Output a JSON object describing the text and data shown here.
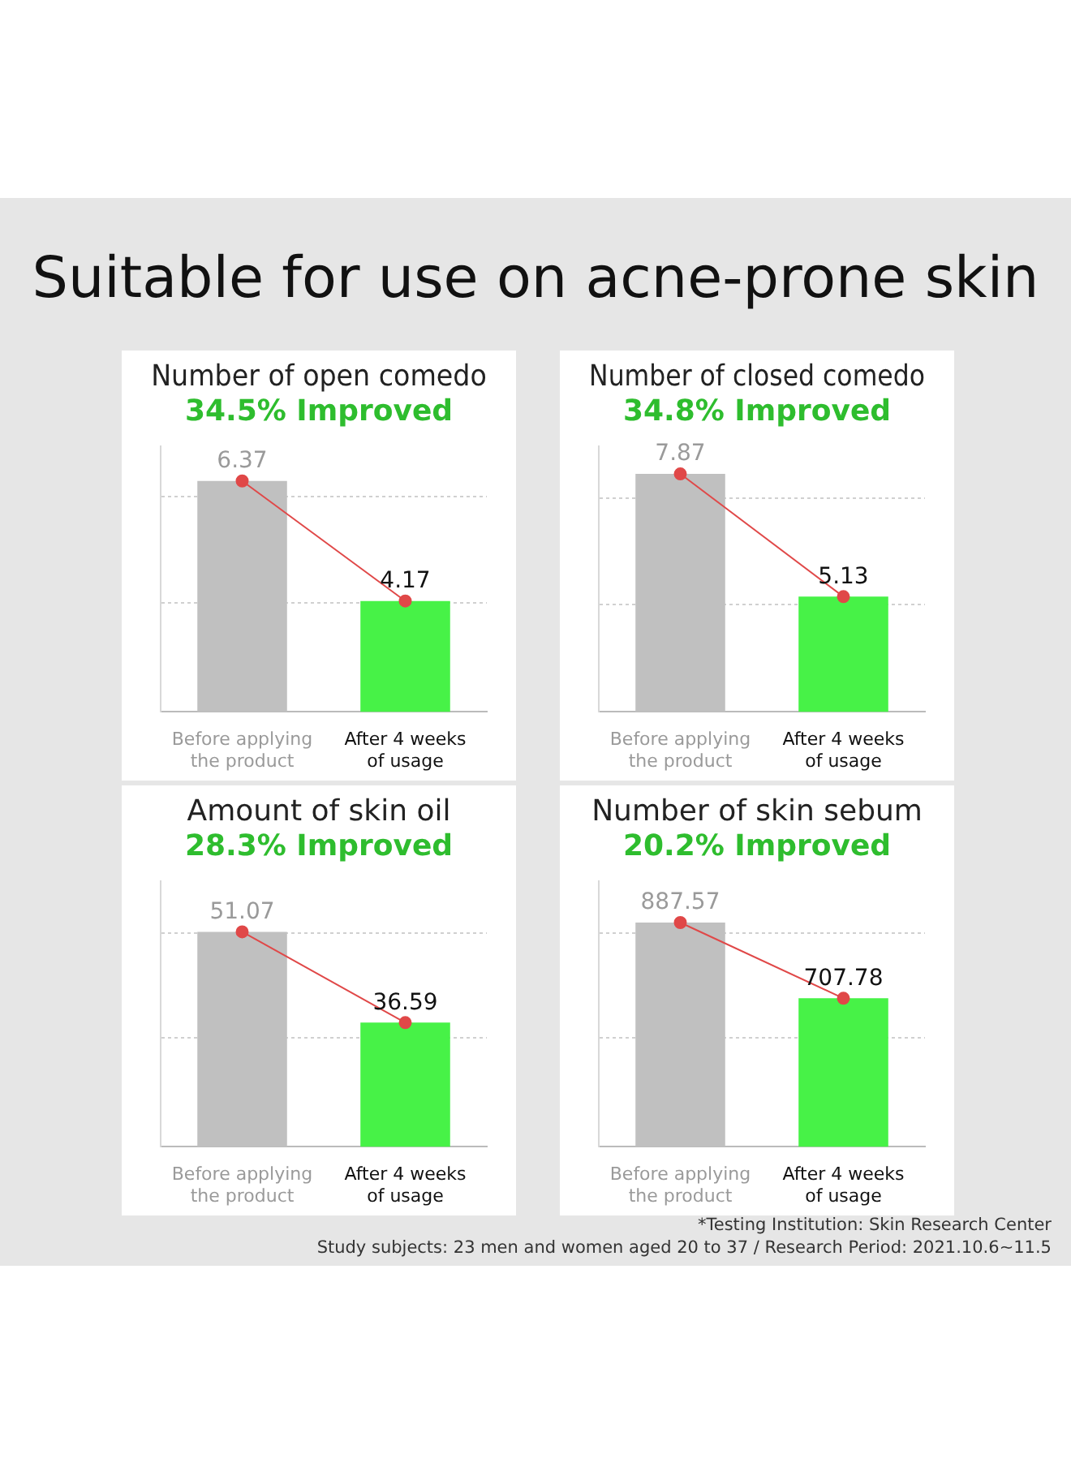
{
  "chart_data": [
    {
      "type": "bar",
      "title": "Number of open comedo",
      "subtitle": "34.5% Improved",
      "categories": [
        "Before applying the product",
        "After 4 weeks of usage"
      ],
      "series": [
        {
          "colors": [
            "#c0c0c0",
            "#47f247"
          ],
          "values": [
            6.37,
            4.17
          ],
          "value_labels": [
            "6.37",
            "4.17"
          ]
        },
        {
          "type": "line",
          "color": "#e04848",
          "values": [
            6.37,
            4.17
          ]
        }
      ],
      "ylim": [
        2.14,
        7.0
      ],
      "yticks": [
        {
          "value": 4.14,
          "label": null
        },
        {
          "value": 6.09,
          "label": null
        }
      ],
      "grid": "y",
      "marker": "circle",
      "legend": false,
      "annotations": [
        "Suitable for use on acne-prone skin"
      ]
    },
    {
      "type": "bar",
      "title": "Number of closed comedo",
      "subtitle": "34.8% Improved",
      "categories": [
        "Before applying the product",
        "After 4 weeks of usage"
      ],
      "series": [
        {
          "colors": [
            "#c0c0c0",
            "#47f247"
          ],
          "values": [
            7.87,
            5.13
          ],
          "value_labels": [
            "7.87",
            "5.13"
          ]
        },
        {
          "type": "line",
          "color": "#e04848",
          "values": [
            7.87,
            5.13
          ]
        }
      ],
      "ylim": [
        2.56,
        8.48
      ],
      "yticks": [
        {
          "value": 4.96,
          "label": null
        },
        {
          "value": 7.32,
          "label": null
        }
      ],
      "grid": "y",
      "marker": "circle",
      "legend": false
    },
    {
      "type": "bar",
      "title": "Amount of skin oil",
      "subtitle": "28.3% Improved",
      "categories": [
        "Before applying the product",
        "After 4 weeks of usage"
      ],
      "series": [
        {
          "colors": [
            "#c0c0c0",
            "#47f247"
          ],
          "values": [
            51.07,
            36.59
          ],
          "value_labels": [
            "51.07",
            "36.59"
          ]
        },
        {
          "type": "line",
          "color": "#e04848",
          "values": [
            51.07,
            36.59
          ]
        }
      ],
      "ylim": [
        16.8,
        59.1
      ],
      "yticks": [
        {
          "value": 34.2,
          "label": null
        },
        {
          "value": 50.9,
          "label": null
        }
      ],
      "grid": "y",
      "marker": "circle",
      "legend": false
    },
    {
      "type": "bar",
      "title": "Number of skin sebum",
      "subtitle": "20.2% Improved",
      "categories": [
        "Before applying the product",
        "After 4 weeks of usage"
      ],
      "series": [
        {
          "colors": [
            "#c0c0c0",
            "#47f247"
          ],
          "values": [
            887.57,
            707.78
          ],
          "value_labels": [
            "887.57",
            "707.78"
          ]
        },
        {
          "type": "line",
          "color": "#e04848",
          "values": [
            887.57,
            707.78
          ]
        }
      ],
      "ylim": [
        355.7,
        985
      ],
      "yticks": [
        {
          "value": 614.7,
          "label": null
        },
        {
          "value": 863,
          "label": null
        }
      ],
      "grid": "y",
      "marker": "circle",
      "legend": false,
      "annotations": [
        "*Testing Institution: Skin Research Center",
        "Study subjects: 23 men and women aged 20 to 37 / Research Period: 2021.10.6~11.5"
      ]
    }
  ]
}
